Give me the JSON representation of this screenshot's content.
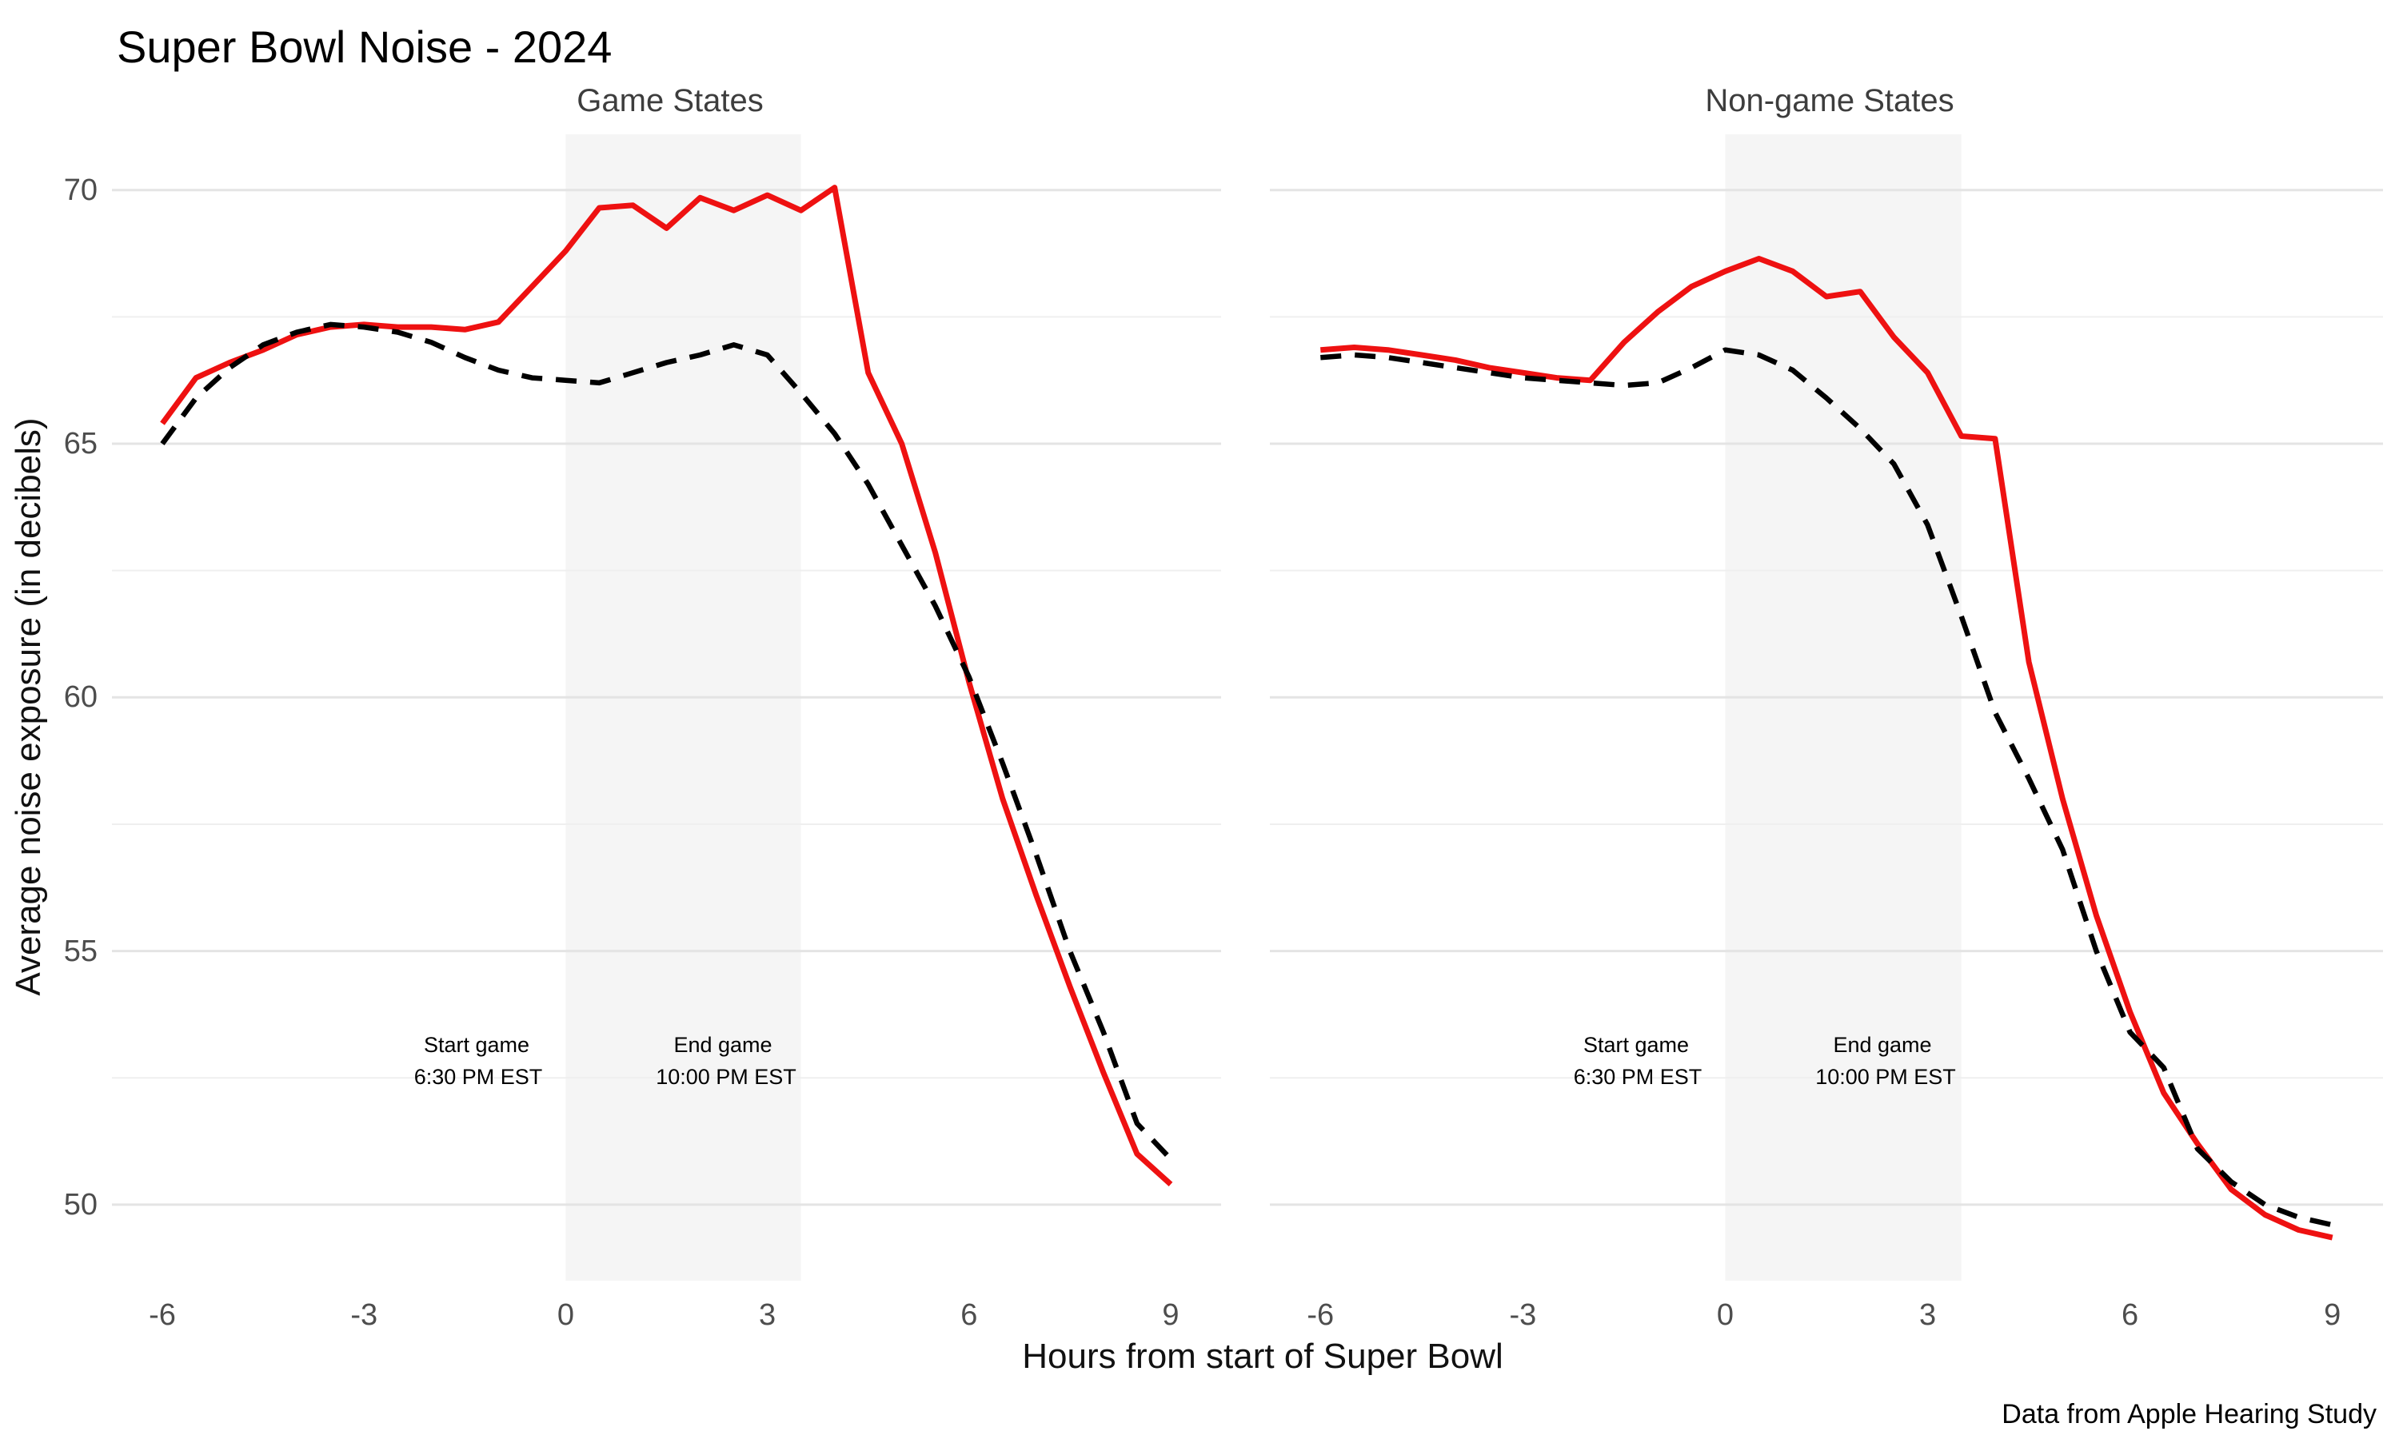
{
  "title": "Super Bowl Noise - 2024",
  "caption": "Data from Apple Hearing Study",
  "axes": {
    "x_label": "Hours from start of Super Bowl",
    "y_label": "Average noise exposure (in decibels)"
  },
  "annotations": {
    "start_line1": "Start game",
    "start_line2": "6:30 PM EST",
    "end_line1": "End game",
    "end_line2": "10:00 PM EST"
  },
  "colors": {
    "red_line": "#ee1111",
    "dashed_line": "#000000",
    "band": "#f5f5f5",
    "grid_major": "#e4e4e4",
    "grid_minor": "#efefef",
    "tick_text": "#4d4d4d"
  },
  "chart_data": [
    {
      "type": "line",
      "panel_title": "Game States",
      "xlim": [
        -6.75,
        9.75
      ],
      "ylim": [
        48.5,
        71.1
      ],
      "x_ticks": [
        -6,
        -3,
        0,
        3,
        6,
        9
      ],
      "y_ticks": [
        50,
        55,
        60,
        65,
        70
      ],
      "y_minor": [
        52.5,
        57.5,
        62.5,
        67.5
      ],
      "shaded_region": {
        "x0": 0,
        "x1": 3.5
      },
      "x": [
        -6,
        -5.5,
        -5,
        -4.5,
        -4,
        -3.5,
        -3,
        -2.5,
        -2,
        -1.5,
        -1,
        -0.5,
        0,
        0.5,
        1,
        1.5,
        2,
        2.5,
        3,
        3.5,
        4,
        4.5,
        5,
        5.5,
        6,
        6.5,
        7,
        7.5,
        8,
        8.5,
        9
      ],
      "series": [
        {
          "name": "red-solid",
          "style": "solid",
          "values": [
            65.4,
            66.3,
            66.6,
            66.85,
            67.15,
            67.3,
            67.35,
            67.3,
            67.3,
            67.25,
            67.4,
            68.1,
            68.8,
            69.65,
            69.7,
            69.25,
            69.85,
            69.6,
            69.9,
            69.6,
            70.05,
            66.4,
            65.0,
            62.85,
            60.3,
            58.0,
            56.1,
            54.3,
            52.6,
            51.0,
            50.4
          ]
        },
        {
          "name": "black-dashed",
          "style": "dashed",
          "values": [
            65.0,
            65.9,
            66.5,
            66.95,
            67.2,
            67.35,
            67.3,
            67.2,
            67.0,
            66.7,
            66.45,
            66.3,
            66.25,
            66.2,
            66.4,
            66.6,
            66.75,
            66.95,
            66.75,
            66.0,
            65.2,
            64.2,
            63.0,
            61.8,
            60.4,
            58.7,
            56.9,
            55.0,
            53.4,
            51.6,
            50.9
          ]
        }
      ]
    },
    {
      "type": "line",
      "panel_title": "Non-game States",
      "xlim": [
        -6.75,
        9.75
      ],
      "ylim": [
        48.5,
        71.1
      ],
      "x_ticks": [
        -6,
        -3,
        0,
        3,
        6,
        9
      ],
      "y_ticks": [
        50,
        55,
        60,
        65,
        70
      ],
      "y_minor": [
        52.5,
        57.5,
        62.5,
        67.5
      ],
      "shaded_region": {
        "x0": 0,
        "x1": 3.5
      },
      "x": [
        -6,
        -5.5,
        -5,
        -4.5,
        -4,
        -3.5,
        -3,
        -2.5,
        -2,
        -1.5,
        -1,
        -0.5,
        0,
        0.5,
        1,
        1.5,
        2,
        2.5,
        3,
        3.5,
        4,
        4.5,
        5,
        5.5,
        6,
        6.5,
        7,
        7.5,
        8,
        8.5,
        9
      ],
      "series": [
        {
          "name": "red-solid",
          "style": "solid",
          "values": [
            66.85,
            66.9,
            66.85,
            66.75,
            66.65,
            66.5,
            66.4,
            66.3,
            66.25,
            67.0,
            67.6,
            68.1,
            68.4,
            68.65,
            68.4,
            67.9,
            68.0,
            67.1,
            66.4,
            65.15,
            65.1,
            60.7,
            58.0,
            55.7,
            53.8,
            52.2,
            51.2,
            50.3,
            49.8,
            49.5,
            49.35
          ]
        },
        {
          "name": "black-dashed",
          "style": "dashed",
          "values": [
            66.7,
            66.75,
            66.7,
            66.6,
            66.5,
            66.4,
            66.3,
            66.25,
            66.2,
            66.15,
            66.2,
            66.5,
            66.85,
            66.75,
            66.45,
            65.9,
            65.3,
            64.6,
            63.4,
            61.6,
            59.7,
            58.4,
            57.0,
            55.0,
            53.4,
            52.7,
            51.1,
            50.45,
            50.0,
            49.75,
            49.6
          ]
        }
      ]
    }
  ]
}
